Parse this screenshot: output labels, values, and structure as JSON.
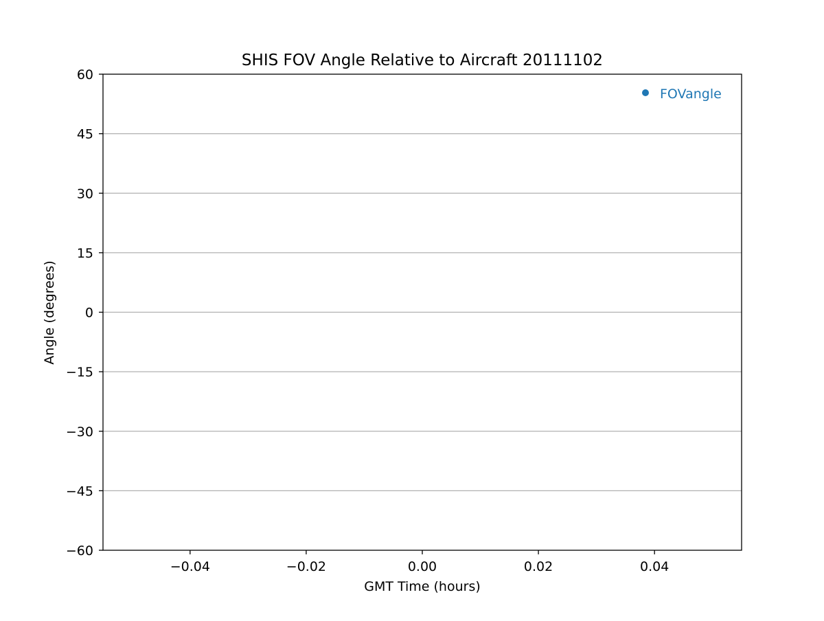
{
  "chart_data": {
    "type": "scatter",
    "title": "SHIS FOV Angle Relative to Aircraft 20111102",
    "xlabel": "GMT Time (hours)",
    "ylabel": "Angle (degrees)",
    "xlim": [
      -0.055,
      0.055
    ],
    "ylim": [
      -60,
      60
    ],
    "xticks": [
      -0.04,
      -0.02,
      0.0,
      0.02,
      0.04
    ],
    "xtick_labels": [
      "−0.04",
      "−0.02",
      "0.00",
      "0.02",
      "0.04"
    ],
    "yticks": [
      -60,
      -45,
      -30,
      -15,
      0,
      15,
      30,
      45,
      60
    ],
    "ytick_labels": [
      "−60",
      "−45",
      "−30",
      "−15",
      "0",
      "15",
      "30",
      "45",
      "60"
    ],
    "grid": "horizontal",
    "legend_placement": "upper-right",
    "series": [
      {
        "name": "FOVangle",
        "color": "#1f77b4",
        "marker": "circle",
        "x": [],
        "y": []
      }
    ]
  }
}
